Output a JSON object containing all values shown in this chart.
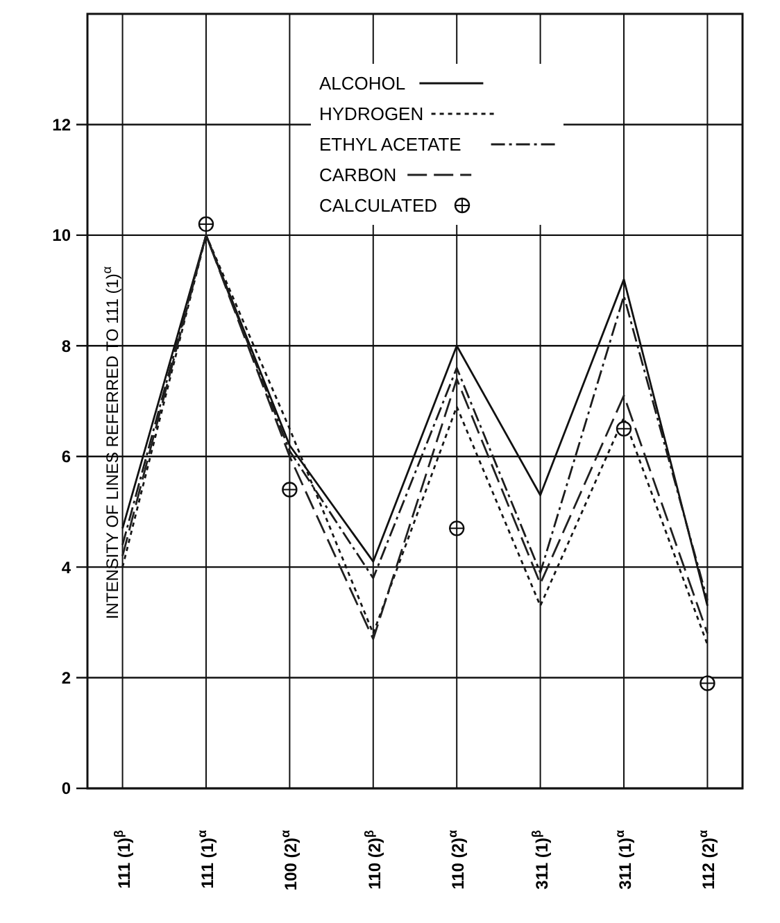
{
  "chart_data": {
    "type": "line",
    "ylabel": "INTENSITY OF LINES REFERRED TO 111 (1)$^{α}$",
    "categories": [
      "111 (1)$^{β}$",
      "111 (1)$^{α}$",
      "100 (2)$^{α}$",
      "110 (2)$^{β}$",
      "110 (2)$^{α}$",
      "311 (1)$^{β}$",
      "311 (1)$^{α}$",
      "112 (2)$^{α}$"
    ],
    "ylim": [
      0,
      14
    ],
    "yticks": [
      0,
      2,
      4,
      6,
      8,
      10,
      12
    ],
    "grid": true,
    "legend": "top right",
    "marker": "none",
    "series": [
      {
        "name": "ALCOHOL",
        "color": "#111111",
        "line_style": "solid",
        "values": [
          4.7,
          10,
          6.2,
          4.1,
          8.0,
          5.3,
          9.2,
          3.3
        ]
      },
      {
        "name": "HYDROGEN",
        "color": "#161616",
        "line_style": "dotted",
        "values": [
          4.0,
          10,
          6.5,
          2.8,
          6.9,
          3.3,
          6.7,
          2.6
        ]
      },
      {
        "name": "ETHYL ACETATE",
        "color": "#1b1b1b",
        "line_style": "dashdot",
        "values": [
          4.4,
          10,
          6.1,
          3.8,
          7.6,
          3.9,
          8.9,
          3.4
        ]
      },
      {
        "name": "CARBON",
        "color": "#202020",
        "line_style": "dashed",
        "values": [
          4.2,
          10,
          6.0,
          2.7,
          7.4,
          3.7,
          7.1,
          2.8
        ]
      },
      {
        "name": "CALCULATED",
        "color": "#0c0c0c",
        "type": "scatter",
        "marker": "circle",
        "values": [
          null,
          10.2,
          5.4,
          null,
          4.7,
          null,
          6.5,
          1.9
        ]
      }
    ]
  }
}
